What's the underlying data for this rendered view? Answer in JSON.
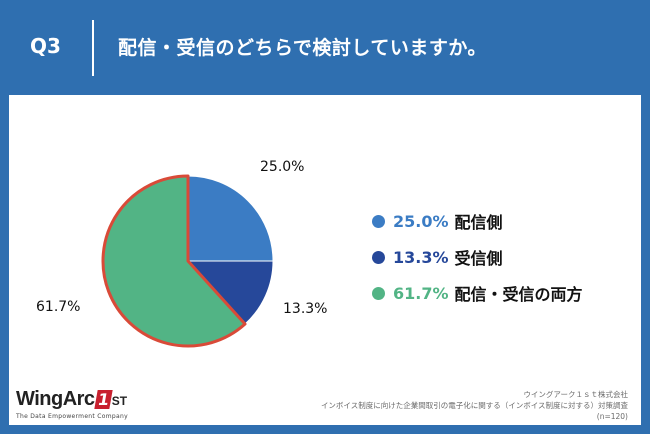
{
  "header": {
    "question_label": "Q3",
    "question_text": "配信・受信のどちらで検討していますか。"
  },
  "colors": {
    "background": "#2f6fb0",
    "slice_distribution": "#3b7cc4",
    "slice_receiving": "#26489a",
    "slice_both": "#52b485",
    "highlight_border": "#d94a38"
  },
  "chart_data": {
    "type": "pie",
    "title": "",
    "slices": [
      {
        "name": "配信側",
        "value": 25.0,
        "label": "25.0%",
        "color": "#3b7cc4"
      },
      {
        "name": "受信側",
        "value": 13.3,
        "label": "13.3%",
        "color": "#26489a"
      },
      {
        "name": "配信・受信の両方",
        "value": 61.7,
        "label": "61.7%",
        "color": "#52b485",
        "highlighted": true
      }
    ],
    "start_angle_deg": 0,
    "direction": "clockwise",
    "legend_position": "right"
  },
  "legend": {
    "items": [
      {
        "pct": "25.0%",
        "name": "配信側",
        "color": "#3b7cc4"
      },
      {
        "pct": "13.3%",
        "name": "受信側",
        "color": "#26489a"
      },
      {
        "pct": "61.7%",
        "name": "配信・受信の両方",
        "color": "#52b485"
      }
    ]
  },
  "logo": {
    "word": "WingArc",
    "one": "1",
    "st": "ST",
    "tagline": "The Data Empowerment Company"
  },
  "footer": {
    "company": "ウイングアーク１ｓｔ株式会社",
    "survey": "インボイス制度に向けた企業間取引の電子化に関する（インボイス制度に対する）対策調査",
    "sample": "(n=120)"
  }
}
